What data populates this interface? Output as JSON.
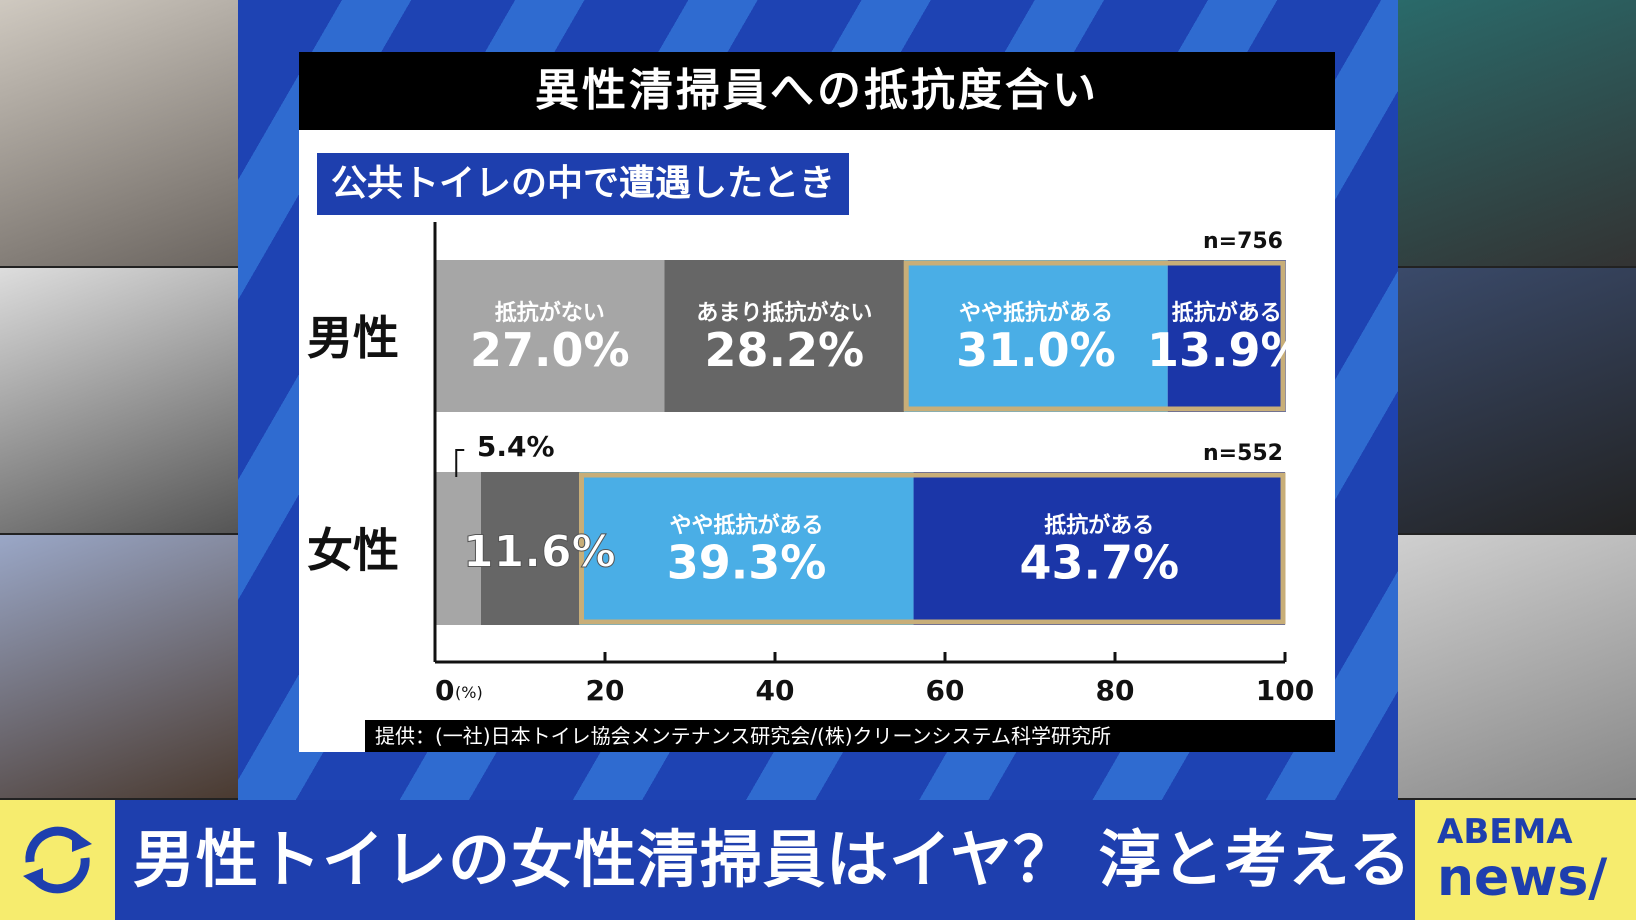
{
  "chart_title": "異性清掃員への抵抗度合い",
  "subtitle": "公共トイレの中で遭遇したとき",
  "source": "提供：(一社)日本トイレ協会メンテナンス研究会/(株)クリーンシステム科学研究所",
  "banner": {
    "headline": "男性トイレの女性清掃員はイヤ？ 淳と考える",
    "logo_top": "ABEMA",
    "logo_bottom": "news/",
    "refresh_icon": "refresh-icon"
  },
  "chart_data": {
    "type": "bar",
    "orientation": "horizontal-stacked-100",
    "title": "異性清掃員への抵抗度合い",
    "categories": [
      "男性",
      "女性"
    ],
    "n": [
      "n=756",
      "n=552"
    ],
    "series": [
      {
        "name": "抵抗がない",
        "values": [
          27.0,
          5.4
        ],
        "color": "#a6a6a6"
      },
      {
        "name": "あまり抵抗がない",
        "values": [
          28.2,
          11.6
        ],
        "color": "#666666"
      },
      {
        "name": "やや抵抗がある",
        "values": [
          31.0,
          39.3
        ],
        "color": "#4aaee6"
      },
      {
        "name": "抵抗がある",
        "values": [
          13.9,
          43.7
        ],
        "color": "#1b36a8"
      }
    ],
    "xlim": [
      0,
      100
    ],
    "xticks": [
      0,
      20,
      40,
      60,
      80,
      100
    ],
    "xunit": "(%)",
    "highlight_color": "#c8ae78"
  }
}
